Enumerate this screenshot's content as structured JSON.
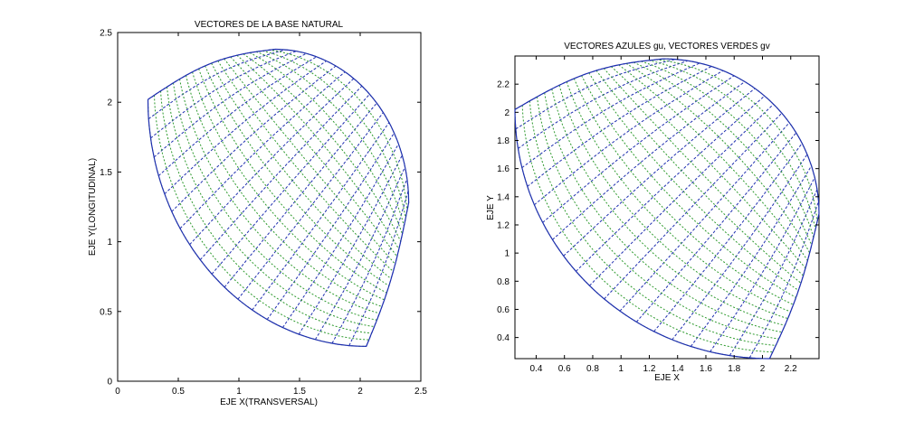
{
  "chart_data": [
    {
      "type": "scatter",
      "subtype": "quiver-grid",
      "title": "VECTORES DE LA BASE NATURAL",
      "xlabel": "EJE X(TRANSVERSAL)",
      "ylabel": "EJE Y(LONGITUDINAL)",
      "xlim": [
        0,
        2.5
      ],
      "ylim": [
        0,
        2.5
      ],
      "xticks": [
        0,
        0.5,
        1,
        1.5,
        2,
        2.5
      ],
      "xtick_labels": [
        "0",
        "0.5",
        "1",
        "1.5",
        "2",
        "2.5"
      ],
      "yticks": [
        0,
        0.5,
        1,
        1.5,
        2,
        2.5
      ],
      "ytick_labels": [
        "0",
        "0.5",
        "1",
        "1.5",
        "2",
        "2.5"
      ],
      "grid": false,
      "domain": {
        "corners": {
          "top_left": [
            0.25,
            2.02
          ],
          "top_right": [
            1.3,
            2.38
          ],
          "bottom_right": [
            2.05,
            0.25
          ],
          "far_right": [
            2.4,
            1.28
          ]
        },
        "u_steps": 20,
        "v_steps": 20
      },
      "series": [
        {
          "color": "#1f2fb0",
          "values": []
        },
        {
          "color": "#2e9a2e",
          "values": []
        }
      ]
    },
    {
      "type": "scatter",
      "subtype": "quiver-grid",
      "title": "VECTORES AZULES gu, VECTORES VERDES gv",
      "xlabel": "EJE X",
      "ylabel": "EJE Y",
      "xlim": [
        0.25,
        2.4
      ],
      "ylim": [
        0.25,
        2.4
      ],
      "xticks": [
        0.4,
        0.6,
        0.8,
        1,
        1.2,
        1.4,
        1.6,
        1.8,
        2,
        2.2
      ],
      "xtick_labels": [
        "0.4",
        "0.6",
        "0.8",
        "1",
        "1.2",
        "1.4",
        "1.6",
        "1.8",
        "2",
        "2.2"
      ],
      "yticks": [
        0.4,
        0.6,
        0.8,
        1,
        1.2,
        1.4,
        1.6,
        1.8,
        2,
        2.2
      ],
      "ytick_labels": [
        "0.4",
        "0.6",
        "0.8",
        "1",
        "1.2",
        "1.4",
        "1.6",
        "1.8",
        "2",
        "2.2"
      ],
      "grid": false,
      "domain": {
        "corners": {
          "top_left": [
            0.25,
            2.02
          ],
          "top_right": [
            1.3,
            2.38
          ],
          "bottom_right": [
            2.05,
            0.25
          ],
          "far_right": [
            2.4,
            1.28
          ]
        },
        "u_steps": 20,
        "v_steps": 20
      },
      "series": [
        {
          "color": "#1f2fb0",
          "values": []
        },
        {
          "color": "#2e9a2e",
          "values": []
        }
      ]
    }
  ]
}
